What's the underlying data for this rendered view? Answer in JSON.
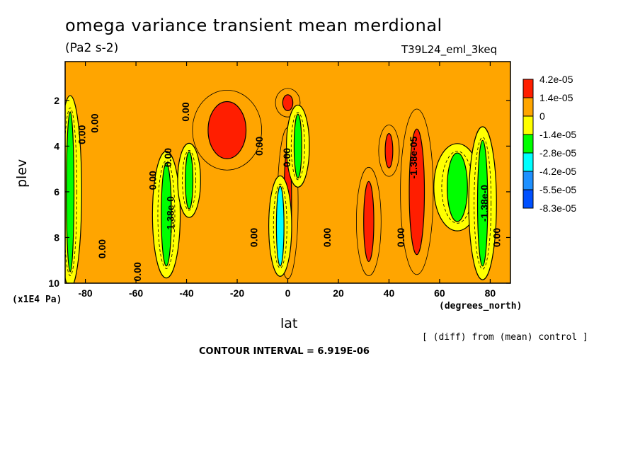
{
  "header": {
    "title": "omega variance transient mean merdional",
    "units": "(Pa2 s-2)",
    "run_id": "T39L24_eml_3keq"
  },
  "footer": {
    "x_units": "(degrees_north)",
    "y_units": "(x1E4 Pa)",
    "diff_note": "[ (diff) from (mean) control ]",
    "contour_interval": "CONTOUR INTERVAL = 6.919E-06"
  },
  "chart_data": {
    "type": "contour",
    "xlabel": "lat",
    "ylabel": "plev",
    "xlim": [
      -88,
      88
    ],
    "ylim": [
      10,
      0.3
    ],
    "x_ticks": [
      -80,
      -60,
      -40,
      -20,
      0,
      20,
      40,
      60,
      80
    ],
    "y_ticks": [
      2,
      4,
      6,
      8,
      10
    ],
    "background_level_color": "#ffa500",
    "colorbar": {
      "labels": [
        "4.2e-05",
        "1.4e-05",
        "0",
        "-1.4e-05",
        "-2.8e-05",
        "-4.2e-05",
        "-5.5e-05",
        "-8.3e-05"
      ],
      "colors": [
        "#ff1e00",
        "#ffa500",
        "#ffff00",
        "#00ff00",
        "#00ffff",
        "#1e90ff",
        "#0050ff"
      ]
    },
    "contour_labels": [
      {
        "text": "0.00",
        "lat": -80,
        "plev": 3.5
      },
      {
        "text": "0.00",
        "lat": -75,
        "plev": 3.0
      },
      {
        "text": "0.00",
        "lat": -72,
        "plev": 8.5
      },
      {
        "text": "0.00",
        "lat": -58,
        "plev": 9.5
      },
      {
        "text": "0.00",
        "lat": -52,
        "plev": 5.5
      },
      {
        "text": "0.00",
        "lat": -46,
        "plev": 4.5
      },
      {
        "text": "-1.38e-0",
        "lat": -45,
        "plev": 7.0
      },
      {
        "text": "0.00",
        "lat": -39,
        "plev": 2.5
      },
      {
        "text": "0.00",
        "lat": -10,
        "plev": 4.0
      },
      {
        "text": "0.00",
        "lat": -12,
        "plev": 8.0
      },
      {
        "text": "0.00",
        "lat": 1,
        "plev": 4.5
      },
      {
        "text": "0.00",
        "lat": 17,
        "plev": 8.0
      },
      {
        "text": "-1.38e-05",
        "lat": 51,
        "plev": 4.5
      },
      {
        "text": "0.00",
        "lat": 46,
        "plev": 8.0
      },
      {
        "text": "-1.38e-0",
        "lat": 79,
        "plev": 6.5
      },
      {
        "text": "0.00",
        "lat": 84,
        "plev": 8.0
      }
    ],
    "features": [
      {
        "level": 4.2e-05,
        "lat": -24,
        "plev": 3.3,
        "w_lat": 15,
        "h_plev": 2.5
      },
      {
        "level": 4.2e-05,
        "lat": 0,
        "plev": 2.1,
        "w_lat": 4,
        "h_plev": 0.7
      },
      {
        "level": 4.2e-05,
        "lat": 0,
        "plev": 6.5,
        "w_lat": 3,
        "h_plev": 5.0
      },
      {
        "level": 4.2e-05,
        "lat": 32,
        "plev": 7.3,
        "w_lat": 4,
        "h_plev": 3.5
      },
      {
        "level": 4.2e-05,
        "lat": 40,
        "plev": 4.2,
        "w_lat": 3,
        "h_plev": 1.5
      },
      {
        "level": 4.2e-05,
        "lat": 51,
        "plev": 6.0,
        "w_lat": 6,
        "h_plev": 5.5
      },
      {
        "level": -2.8e-05,
        "lat": -86,
        "plev": 6.0,
        "w_lat": 3,
        "h_plev": 7.0
      },
      {
        "level": -2.8e-05,
        "lat": -48,
        "plev": 7.0,
        "w_lat": 4,
        "h_plev": 4.5
      },
      {
        "level": -2.8e-05,
        "lat": -39,
        "plev": 5.5,
        "w_lat": 3,
        "h_plev": 2.5
      },
      {
        "level": -2.8e-05,
        "lat": 4,
        "plev": 4.0,
        "w_lat": 3,
        "h_plev": 2.8
      },
      {
        "level": -2.8e-05,
        "lat": 67,
        "plev": 5.8,
        "w_lat": 8,
        "h_plev": 3.0
      },
      {
        "level": -2.8e-05,
        "lat": 77,
        "plev": 6.5,
        "w_lat": 4,
        "h_plev": 5.5
      },
      {
        "level": -4.2e-05,
        "lat": -3,
        "plev": 7.5,
        "w_lat": 3,
        "h_plev": 3.5
      }
    ],
    "grid": false
  }
}
